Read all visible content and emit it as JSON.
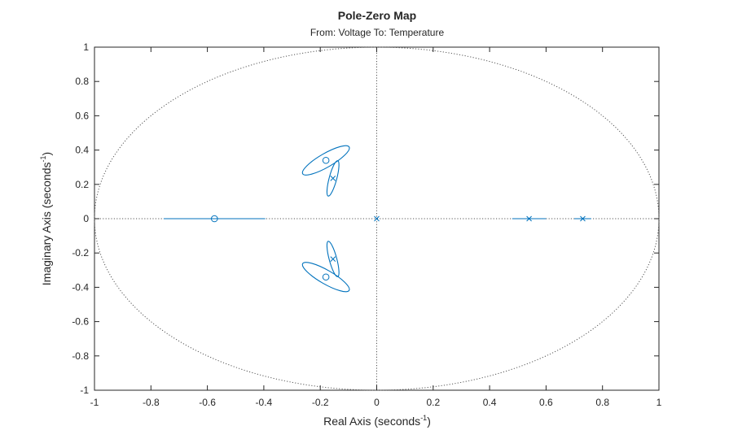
{
  "chart_data": {
    "type": "scatter",
    "title": "Pole-Zero Map",
    "subtitle": "From: Voltage  To: Temperature",
    "xlabel": {
      "main": "Real  Axis  (seconds",
      "sup": "-1",
      "close": ")"
    },
    "ylabel": {
      "main": "Imaginary  Axis  (seconds",
      "sup": "-1",
      "close": ")"
    },
    "xlim": [
      -1,
      1
    ],
    "ylim": [
      -1,
      1
    ],
    "xticks": [
      -1,
      -0.8,
      -0.6,
      -0.4,
      -0.2,
      0,
      0.2,
      0.4,
      0.6,
      0.8,
      1
    ],
    "yticks": [
      -1,
      -0.8,
      -0.6,
      -0.4,
      -0.2,
      0,
      0.2,
      0.4,
      0.6,
      0.8,
      1
    ],
    "xtick_labels": [
      "-1",
      "-0.8",
      "-0.6",
      "-0.4",
      "-0.2",
      "0",
      "0.2",
      "0.4",
      "0.6",
      "0.8",
      "1"
    ],
    "ytick_labels": [
      "-1",
      "-0.8",
      "-0.6",
      "-0.4",
      "-0.2",
      "0",
      "0.2",
      "0.4",
      "0.6",
      "0.8",
      "1"
    ],
    "grid": false,
    "unit_circle": true,
    "color": "#0072BD",
    "poles": [
      {
        "re": -0.155,
        "im": 0.235
      },
      {
        "re": -0.155,
        "im": -0.235
      },
      {
        "re": 0.0,
        "im": 0.0
      },
      {
        "re": 0.54,
        "im": 0.0
      },
      {
        "re": 0.73,
        "im": 0.0
      }
    ],
    "zeros": [
      {
        "re": -0.18,
        "im": 0.34
      },
      {
        "re": -0.18,
        "im": -0.34
      },
      {
        "re": -0.575,
        "im": 0.0
      }
    ],
    "uncertainty_ellipses": [
      {
        "cx": -0.18,
        "cy": 0.34,
        "rx": 0.095,
        "ry": 0.04,
        "angle": 30
      },
      {
        "cx": -0.155,
        "cy": 0.235,
        "rx": 0.065,
        "ry": 0.022,
        "angle": 75
      },
      {
        "cx": -0.18,
        "cy": -0.34,
        "rx": 0.095,
        "ry": 0.04,
        "angle": -30
      },
      {
        "cx": -0.155,
        "cy": -0.235,
        "rx": 0.065,
        "ry": 0.022,
        "angle": -75
      }
    ],
    "uncertainty_segments": [
      {
        "x1": -0.755,
        "y1": 0,
        "x2": -0.395,
        "y2": 0
      },
      {
        "x1": 0.48,
        "y1": 0,
        "x2": 0.6,
        "y2": 0
      },
      {
        "x1": 0.7,
        "y1": 0,
        "x2": 0.76,
        "y2": 0
      }
    ]
  }
}
